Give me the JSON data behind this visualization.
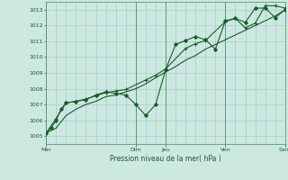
{
  "bg_color": "#cce8e0",
  "grid_color": "#aacccc",
  "line_color": "#1a5c2a",
  "marker_color": "#1a5c2a",
  "xlabel": "Pression niveau de la mer( hPa )",
  "ylim": [
    1004.5,
    1013.5
  ],
  "yticks": [
    1005,
    1006,
    1007,
    1008,
    1009,
    1010,
    1011,
    1012,
    1013
  ],
  "day_labels": [
    "Mer",
    "Dim",
    "Jeu",
    "Ven",
    "Sam"
  ],
  "day_positions": [
    0,
    9,
    12,
    18,
    24
  ],
  "xlim": [
    0,
    24
  ],
  "series1_x": [
    0,
    0.5,
    1,
    1.5,
    2,
    3,
    4,
    5,
    6,
    7,
    8,
    9,
    10,
    11,
    12,
    13,
    14,
    15,
    16,
    17,
    18,
    19,
    20,
    21,
    22,
    23,
    24
  ],
  "series1_y": [
    1005.2,
    1005.35,
    1005.5,
    1005.9,
    1006.3,
    1006.7,
    1007.0,
    1007.2,
    1007.5,
    1007.6,
    1007.8,
    1008.0,
    1008.3,
    1008.7,
    1009.05,
    1009.4,
    1009.8,
    1010.1,
    1010.5,
    1010.8,
    1011.1,
    1011.4,
    1011.7,
    1012.0,
    1012.3,
    1012.6,
    1013.0
  ],
  "series2_x": [
    0,
    0.5,
    1,
    1.5,
    2,
    3,
    4,
    5,
    6,
    7,
    8,
    9,
    10,
    11,
    12,
    13,
    14,
    15,
    16,
    17,
    18,
    19,
    20,
    21,
    22,
    23,
    24
  ],
  "series2_y": [
    1005.2,
    1005.5,
    1006.0,
    1006.7,
    1007.1,
    1007.2,
    1007.3,
    1007.6,
    1007.8,
    1007.7,
    1007.6,
    1007.0,
    1006.3,
    1007.0,
    1009.2,
    1010.8,
    1011.05,
    1011.3,
    1011.1,
    1010.5,
    1012.3,
    1012.45,
    1012.2,
    1013.1,
    1013.1,
    1012.5,
    1013.0
  ],
  "series3_x": [
    0,
    1,
    2,
    3,
    4,
    5,
    6,
    7,
    8,
    10,
    11,
    12,
    14,
    15,
    16,
    18,
    19,
    20,
    21,
    22,
    23,
    24
  ],
  "series3_y": [
    1005.2,
    1006.1,
    1007.1,
    1007.2,
    1007.35,
    1007.55,
    1007.75,
    1007.85,
    1007.95,
    1008.55,
    1008.85,
    1009.25,
    1010.55,
    1010.85,
    1011.05,
    1012.25,
    1012.45,
    1011.85,
    1012.15,
    1013.25,
    1013.25,
    1013.1
  ],
  "vline_major": [
    0,
    9,
    12,
    18,
    24
  ],
  "vline_minor_step": 1
}
